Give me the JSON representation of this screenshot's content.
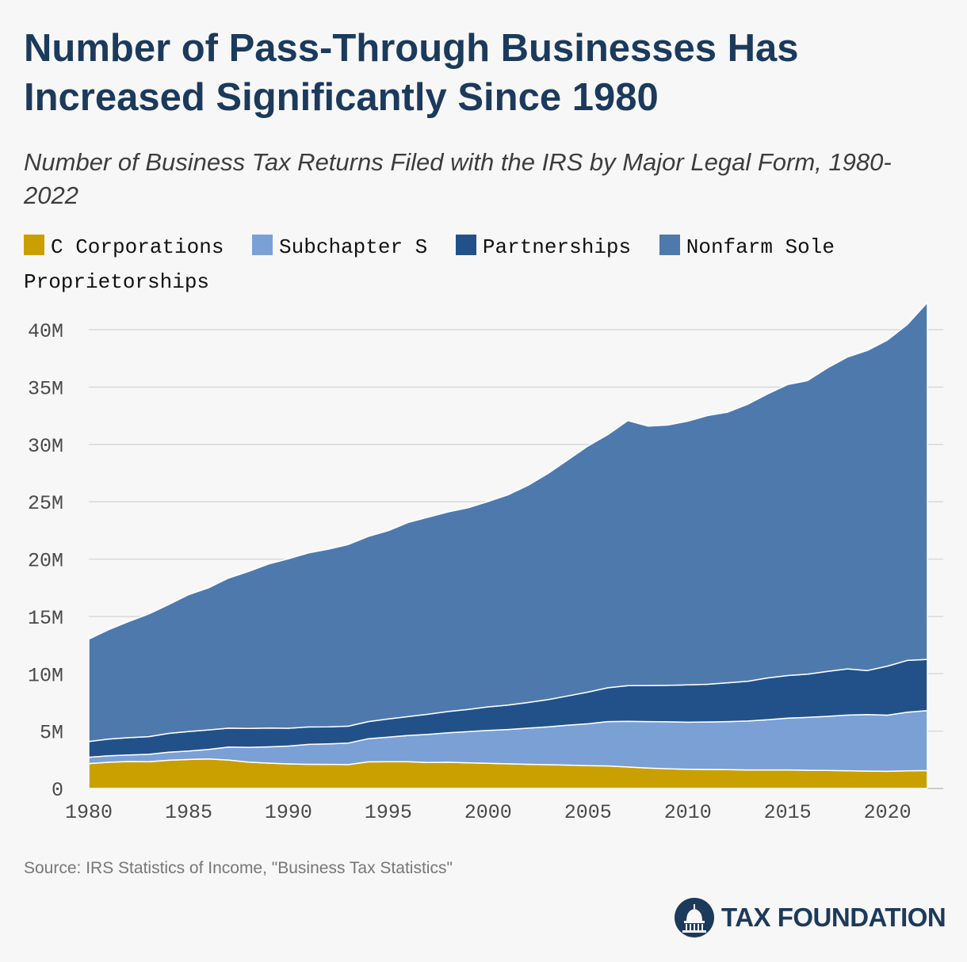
{
  "title": "Number of Pass-Through Businesses Has Increased Significantly Since 1980",
  "subtitle": "Number of Business Tax Returns Filed with the IRS by Major Legal Form, 1980-2022",
  "source": "Source: IRS Statistics of Income, \"Business Tax Statistics\"",
  "brand": "TAX FOUNDATION",
  "colors": {
    "c_corporations": "#c9a000",
    "subchapter_s": "#7aa0d6",
    "partnerships": "#22518a",
    "sole_proprietorships": "#4e79ad",
    "title": "#1b3a5c"
  },
  "chart_data": {
    "type": "area",
    "stacked": true,
    "title": "Number of Pass-Through Businesses Has Increased Significantly Since 1980",
    "subtitle": "Number of Business Tax Returns Filed with the IRS by Major Legal Form, 1980-2022",
    "xlabel": "",
    "ylabel": "",
    "ylim": [
      0,
      42500000
    ],
    "xlim": [
      1980,
      2022
    ],
    "y_ticks": [
      0,
      5000000,
      10000000,
      15000000,
      20000000,
      25000000,
      30000000,
      35000000,
      40000000
    ],
    "y_tick_labels": [
      "0",
      "5M",
      "10M",
      "15M",
      "20M",
      "25M",
      "30M",
      "35M",
      "40M"
    ],
    "x_ticks": [
      1980,
      1985,
      1990,
      1995,
      2000,
      2005,
      2010,
      2015,
      2020
    ],
    "x_tick_labels": [
      "1980",
      "1985",
      "1990",
      "1995",
      "2000",
      "2005",
      "2010",
      "2015",
      "2020"
    ],
    "grid": true,
    "legend_position": "top",
    "x": [
      1980,
      1981,
      1982,
      1983,
      1984,
      1985,
      1986,
      1987,
      1988,
      1989,
      1990,
      1991,
      1992,
      1993,
      1994,
      1995,
      1996,
      1997,
      1998,
      1999,
      2000,
      2001,
      2002,
      2003,
      2004,
      2005,
      2006,
      2007,
      2008,
      2009,
      2010,
      2011,
      2012,
      2013,
      2014,
      2015,
      2016,
      2017,
      2018,
      2019,
      2020,
      2021,
      2022
    ],
    "series": [
      {
        "name": "C Corporations",
        "color_key": "c_corporations",
        "values": [
          2170000,
          2290000,
          2350000,
          2330000,
          2460000,
          2530000,
          2580000,
          2480000,
          2300000,
          2210000,
          2140000,
          2110000,
          2100000,
          2080000,
          2320000,
          2330000,
          2330000,
          2270000,
          2290000,
          2240000,
          2200000,
          2150000,
          2110000,
          2070000,
          2040000,
          1990000,
          1960000,
          1870000,
          1780000,
          1720000,
          1680000,
          1660000,
          1640000,
          1620000,
          1620000,
          1620000,
          1580000,
          1570000,
          1550000,
          1510000,
          1490000,
          1540000,
          1560000
        ]
      },
      {
        "name": "Subchapter S",
        "color_key": "subchapter_s",
        "values": [
          550000,
          560000,
          570000,
          650000,
          700000,
          730000,
          830000,
          1130000,
          1290000,
          1420000,
          1560000,
          1730000,
          1790000,
          1880000,
          2020000,
          2150000,
          2290000,
          2450000,
          2560000,
          2720000,
          2860000,
          2990000,
          3150000,
          3300000,
          3480000,
          3650000,
          3870000,
          3990000,
          4050000,
          4090000,
          4100000,
          4140000,
          4190000,
          4260000,
          4380000,
          4520000,
          4620000,
          4720000,
          4850000,
          4930000,
          4900000,
          5110000,
          5230000
        ]
      },
      {
        "name": "Partnerships",
        "color_key": "partnerships",
        "values": [
          1380000,
          1460000,
          1510000,
          1540000,
          1640000,
          1710000,
          1700000,
          1650000,
          1650000,
          1640000,
          1550000,
          1520000,
          1480000,
          1470000,
          1490000,
          1580000,
          1650000,
          1760000,
          1860000,
          1940000,
          2060000,
          2130000,
          2240000,
          2380000,
          2550000,
          2760000,
          2950000,
          3100000,
          3150000,
          3180000,
          3250000,
          3290000,
          3390000,
          3460000,
          3640000,
          3710000,
          3770000,
          3920000,
          4030000,
          3840000,
          4280000,
          4520000,
          4470000
        ]
      },
      {
        "name": "Nonfarm Sole Proprietorships",
        "color_key": "sole_proprietorships",
        "values": [
          8920000,
          9540000,
          10130000,
          10700000,
          11240000,
          11930000,
          12390000,
          13090000,
          13680000,
          14300000,
          14780000,
          15180000,
          15500000,
          15850000,
          16150000,
          16420000,
          16930000,
          17180000,
          17410000,
          17580000,
          17900000,
          18340000,
          18930000,
          19720000,
          20590000,
          21470000,
          22080000,
          23120000,
          22620000,
          22700000,
          23000000,
          23430000,
          23600000,
          24160000,
          24770000,
          25370000,
          25600000,
          26470000,
          27190000,
          27920000,
          28430000,
          29300000,
          31120000
        ]
      }
    ]
  }
}
